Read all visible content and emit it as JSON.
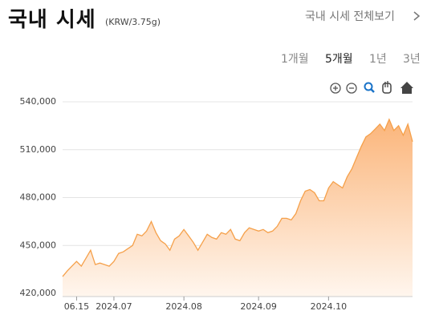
{
  "header": {
    "title": "국내 시세",
    "unit": "(KRW/3.75g)",
    "link": "국내 시세 전체보기"
  },
  "tabs": [
    "1개월",
    "5개월",
    "1년",
    "3년"
  ],
  "chart_data": {
    "type": "area",
    "categories": [
      null,
      null,
      null,
      "06.15",
      null,
      null,
      null,
      null,
      null,
      null,
      null,
      "2024.07",
      null,
      null,
      null,
      null,
      null,
      null,
      null,
      null,
      null,
      null,
      null,
      null,
      null,
      null,
      "2024.08",
      null,
      null,
      null,
      null,
      null,
      null,
      null,
      null,
      null,
      null,
      null,
      null,
      null,
      null,
      null,
      "2024.09",
      null,
      null,
      null,
      null,
      null,
      null,
      null,
      null,
      null,
      null,
      null,
      null,
      null,
      null,
      "2024.10",
      null,
      null,
      null,
      null,
      null,
      null,
      null,
      null,
      null,
      null,
      null,
      null,
      null,
      null,
      null,
      null,
      null,
      null
    ],
    "values": [
      430500,
      434000,
      437000,
      440000,
      437000,
      442000,
      447000,
      438000,
      439000,
      438000,
      437000,
      440000,
      445000,
      446000,
      448000,
      450000,
      457000,
      456000,
      459000,
      465000,
      458000,
      453000,
      451000,
      447000,
      454000,
      456000,
      460000,
      456000,
      452000,
      447000,
      452000,
      457000,
      455000,
      454000,
      458000,
      457000,
      460000,
      454000,
      453000,
      458000,
      461000,
      460000,
      459000,
      460000,
      458000,
      459000,
      462000,
      467000,
      467000,
      466000,
      470000,
      478000,
      484000,
      485000,
      483000,
      478000,
      478000,
      486000,
      490000,
      488000,
      486000,
      493000,
      498000,
      505000,
      512000,
      518000,
      520000,
      523000,
      526000,
      522000,
      529000,
      522000,
      525000,
      519000,
      526000,
      515000
    ],
    "color": "#f5a04a",
    "ylim": [
      420000,
      540000
    ],
    "yticks": [
      {
        "value": 420000,
        "label": "420,000"
      },
      {
        "value": 450000,
        "label": "450,000"
      },
      {
        "value": 480000,
        "label": "480,000"
      },
      {
        "value": 510000,
        "label": "510,000"
      },
      {
        "value": 540000,
        "label": "540,000"
      }
    ],
    "grid": true
  }
}
